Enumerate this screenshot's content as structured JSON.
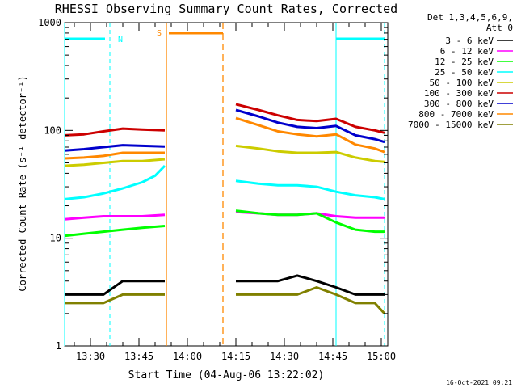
{
  "chart_data": {
    "type": "line",
    "title": "RHESSI Observing Summary Count Rates, Corrected",
    "xlabel": "Start Time (04-Aug-06 13:22:02)",
    "ylabel": "Corrected Count Rate (s⁻¹ detector⁻¹)",
    "ylim": [
      1,
      1000
    ],
    "yscale": "log",
    "y_tick_labels": [
      "1",
      "10",
      "100",
      "1000"
    ],
    "x_tick_labels": [
      "13:30",
      "13:45",
      "14:00",
      "14:15",
      "14:30",
      "14:45",
      "15:00"
    ],
    "x_tick_minutes": [
      30,
      45,
      60,
      75,
      90,
      105,
      120
    ],
    "xlim_minutes": [
      22,
      122
    ],
    "grid": false,
    "legend_position": "top-right",
    "legend_header": [
      "Det 1,3,4,5,6,9,",
      "Att 0"
    ],
    "gaps_minutes": [
      [
        53,
        75
      ]
    ],
    "series": [
      {
        "name": "3 - 6 keV",
        "color": "#000000",
        "x": [
          22,
          28,
          34,
          40,
          46,
          53,
          75,
          82,
          88,
          94,
          100,
          106,
          112,
          118,
          121
        ],
        "y": [
          3,
          3,
          3,
          4,
          4,
          4,
          4,
          4,
          4,
          4.5,
          4,
          3.5,
          3,
          3,
          3
        ]
      },
      {
        "name": "6 - 12 keV",
        "color": "#ff00ff",
        "x": [
          22,
          28,
          34,
          40,
          46,
          53,
          75,
          82,
          88,
          94,
          100,
          106,
          112,
          118,
          121
        ],
        "y": [
          15,
          15.5,
          16,
          16,
          16,
          16.5,
          17.5,
          17,
          16.5,
          16.5,
          17,
          16,
          15.5,
          15.5,
          15.5
        ]
      },
      {
        "name": "12 - 25 keV",
        "color": "#00ff00",
        "x": [
          22,
          28,
          34,
          40,
          46,
          53,
          75,
          82,
          88,
          94,
          100,
          106,
          112,
          118,
          121
        ],
        "y": [
          10.5,
          11,
          11.5,
          12,
          12.5,
          13,
          18,
          17,
          16.5,
          16.5,
          17,
          14,
          12,
          11.5,
          11.5
        ]
      },
      {
        "name": "25 - 50 keV",
        "color": "#00ffff",
        "x": [
          22,
          28,
          34,
          40,
          46,
          50,
          53,
          75,
          82,
          88,
          94,
          100,
          106,
          112,
          118,
          121
        ],
        "y": [
          23,
          24,
          26,
          29,
          33,
          38,
          47,
          34,
          32,
          31,
          31,
          30,
          27,
          25,
          24,
          23
        ]
      },
      {
        "name": "50 - 100 keV",
        "color": "#cccc00",
        "x": [
          22,
          28,
          34,
          40,
          46,
          53,
          75,
          82,
          88,
          94,
          100,
          106,
          112,
          118,
          121
        ],
        "y": [
          47,
          48,
          50,
          52,
          52,
          54,
          72,
          68,
          64,
          62,
          62,
          63,
          56,
          52,
          51
        ]
      },
      {
        "name": "100 - 300 keV",
        "color": "#cc0000",
        "x": [
          22,
          28,
          34,
          40,
          46,
          53,
          75,
          82,
          88,
          94,
          100,
          106,
          112,
          118,
          121
        ],
        "y": [
          90,
          92,
          98,
          104,
          102,
          100,
          175,
          155,
          138,
          125,
          122,
          128,
          108,
          100,
          95
        ]
      },
      {
        "name": "300 - 800 keV",
        "color": "#0000cc",
        "x": [
          22,
          28,
          34,
          40,
          46,
          53,
          75,
          82,
          88,
          94,
          100,
          106,
          112,
          118,
          121
        ],
        "y": [
          65,
          67,
          70,
          73,
          72,
          71,
          155,
          135,
          118,
          108,
          105,
          110,
          90,
          83,
          78
        ]
      },
      {
        "name": "800 - 7000 keV",
        "color": "#ff8800",
        "x": [
          22,
          28,
          34,
          40,
          46,
          53,
          75,
          82,
          88,
          94,
          100,
          106,
          112,
          118,
          121
        ],
        "y": [
          55,
          56,
          58,
          62,
          62,
          62,
          130,
          112,
          98,
          92,
          88,
          92,
          74,
          68,
          63
        ]
      },
      {
        "name": "7000 - 15000 keV",
        "color": "#808000",
        "x": [
          22,
          28,
          34,
          40,
          46,
          53,
          75,
          82,
          88,
          94,
          100,
          106,
          112,
          118,
          121
        ],
        "y": [
          2.5,
          2.5,
          2.5,
          3,
          3,
          3,
          3,
          3,
          3,
          3,
          3.5,
          3,
          2.5,
          2.5,
          2
        ]
      }
    ],
    "annotations": [
      {
        "label": "N",
        "color": "#00ffff",
        "x_minutes": 36
      },
      {
        "label": "S",
        "color": "#ff8800",
        "x_minutes": 57
      }
    ],
    "footer_timestamp": "16-Oct-2021 09:21"
  }
}
